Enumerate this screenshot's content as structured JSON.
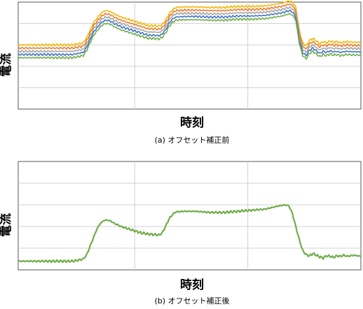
{
  "chart_data": [
    {
      "type": "line",
      "caption": "(a) オフセット補正前",
      "xlabel": "時刻",
      "ylabel": "電流",
      "xlim": [
        0,
        100
      ],
      "ylim": [
        0,
        10
      ],
      "x_gridlines": [
        34,
        67
      ],
      "y_gridlines": [
        2,
        4,
        6,
        8
      ],
      "grid": true,
      "legend": "none",
      "series": [
        {
          "color": "#f2b705",
          "offset": 0.9
        },
        {
          "color": "#ed7d31",
          "offset": 0.6
        },
        {
          "color": "#a5a5a5",
          "offset": 0.3
        },
        {
          "color": "#4472c4",
          "offset": 0.0
        },
        {
          "color": "#70ad47",
          "offset": -0.3
        }
      ],
      "base": {
        "x": [
          0,
          8,
          16,
          19,
          20,
          22,
          24,
          25,
          26,
          27,
          28,
          30,
          33,
          36,
          38,
          40,
          41,
          42,
          43,
          44,
          45,
          46,
          48,
          52,
          56,
          60,
          64,
          68,
          72,
          74,
          76,
          77,
          78,
          79,
          80,
          81,
          82,
          83,
          84,
          85,
          86,
          88,
          89,
          90,
          91,
          92,
          93,
          94,
          95,
          96,
          98,
          100
        ],
        "y": [
          5.1,
          5.1,
          5.1,
          5.3,
          5.8,
          7.2,
          8.0,
          8.25,
          8.3,
          8.2,
          8.0,
          7.7,
          7.4,
          7.1,
          6.9,
          6.9,
          6.85,
          7.0,
          7.4,
          8.0,
          8.4,
          8.6,
          8.65,
          8.65,
          8.6,
          8.6,
          8.7,
          8.7,
          8.75,
          8.85,
          8.95,
          9.0,
          9.1,
          9.2,
          9.1,
          8.6,
          6.5,
          5.3,
          5.0,
          5.5,
          5.7,
          5.2,
          5.4,
          5.3,
          5.45,
          5.35,
          5.4,
          5.3,
          5.35,
          5.4,
          5.35,
          5.35
        ]
      }
    },
    {
      "type": "line",
      "caption": "(b) オフセット補正後",
      "xlabel": "時刻",
      "ylabel": "電流",
      "xlim": [
        0,
        100
      ],
      "ylim": [
        0,
        10
      ],
      "x_gridlines": [
        34,
        67
      ],
      "y_gridlines": [
        2,
        4,
        6,
        8
      ],
      "grid": true,
      "legend": "none",
      "series": [
        {
          "color": "#70ad47",
          "offset": 0
        }
      ],
      "base": {
        "x": [
          0,
          8,
          16,
          19,
          20,
          21,
          22,
          23,
          24,
          25,
          26,
          27,
          28,
          30,
          33,
          36,
          38,
          40,
          41,
          42,
          43,
          44,
          45,
          46,
          48,
          52,
          56,
          60,
          64,
          68,
          72,
          74,
          76,
          77,
          78,
          79,
          80,
          81,
          82,
          83,
          84,
          85,
          86,
          88,
          89,
          90,
          91,
          92,
          93,
          94,
          95,
          96,
          98,
          100
        ],
        "y": [
          0.8,
          0.8,
          0.8,
          1.0,
          1.4,
          2.2,
          3.0,
          3.8,
          4.3,
          4.55,
          4.6,
          4.5,
          4.3,
          4.0,
          3.7,
          3.4,
          3.3,
          3.25,
          3.2,
          3.4,
          4.0,
          4.7,
          5.1,
          5.35,
          5.4,
          5.4,
          5.3,
          5.3,
          5.4,
          5.5,
          5.6,
          5.75,
          5.9,
          5.95,
          6.0,
          5.9,
          5.2,
          4.0,
          2.8,
          1.8,
          1.4,
          1.3,
          1.5,
          1.2,
          1.1,
          1.3,
          1.25,
          1.15,
          1.3,
          1.25,
          1.35,
          1.25,
          1.35,
          1.25
        ]
      }
    }
  ]
}
